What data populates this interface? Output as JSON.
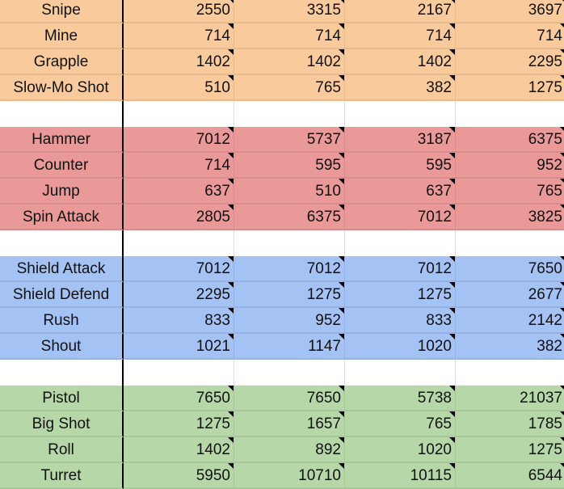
{
  "groups": [
    {
      "color": "#f9cb9c",
      "rows": [
        {
          "name": "Snipe",
          "values": [
            "2550",
            "3315",
            "2167",
            "3697"
          ]
        },
        {
          "name": "Mine",
          "values": [
            "714",
            "714",
            "714",
            "714"
          ]
        },
        {
          "name": "Grapple",
          "values": [
            "1402",
            "1402",
            "1402",
            "2295"
          ]
        },
        {
          "name": "Slow-Mo Shot",
          "values": [
            "510",
            "765",
            "382",
            "1275"
          ]
        }
      ]
    },
    {
      "color": "#ea9999",
      "rows": [
        {
          "name": "Hammer",
          "values": [
            "7012",
            "5737",
            "3187",
            "6375"
          ]
        },
        {
          "name": "Counter",
          "values": [
            "714",
            "595",
            "595",
            "952"
          ]
        },
        {
          "name": "Jump",
          "values": [
            "637",
            "510",
            "637",
            "765"
          ]
        },
        {
          "name": "Spin Attack",
          "values": [
            "2805",
            "6375",
            "7012",
            "3825"
          ]
        }
      ]
    },
    {
      "color": "#a4c2f4",
      "rows": [
        {
          "name": "Shield Attack",
          "values": [
            "7012",
            "7012",
            "7012",
            "7650"
          ]
        },
        {
          "name": "Shield Defend",
          "values": [
            "2295",
            "1275",
            "1275",
            "2677"
          ]
        },
        {
          "name": "Rush",
          "values": [
            "833",
            "952",
            "833",
            "2142"
          ]
        },
        {
          "name": "Shout",
          "values": [
            "1021",
            "1147",
            "1020",
            "382"
          ]
        }
      ]
    },
    {
      "color": "#b6d7a8",
      "rows": [
        {
          "name": "Pistol",
          "values": [
            "7650",
            "7650",
            "5738",
            "21037"
          ]
        },
        {
          "name": "Big Shot",
          "values": [
            "1275",
            "1657",
            "765",
            "1785"
          ]
        },
        {
          "name": "Roll",
          "values": [
            "1402",
            "892",
            "1020",
            "1275"
          ]
        },
        {
          "name": "Turret",
          "values": [
            "5950",
            "10710",
            "10115",
            "6544"
          ]
        }
      ]
    }
  ]
}
